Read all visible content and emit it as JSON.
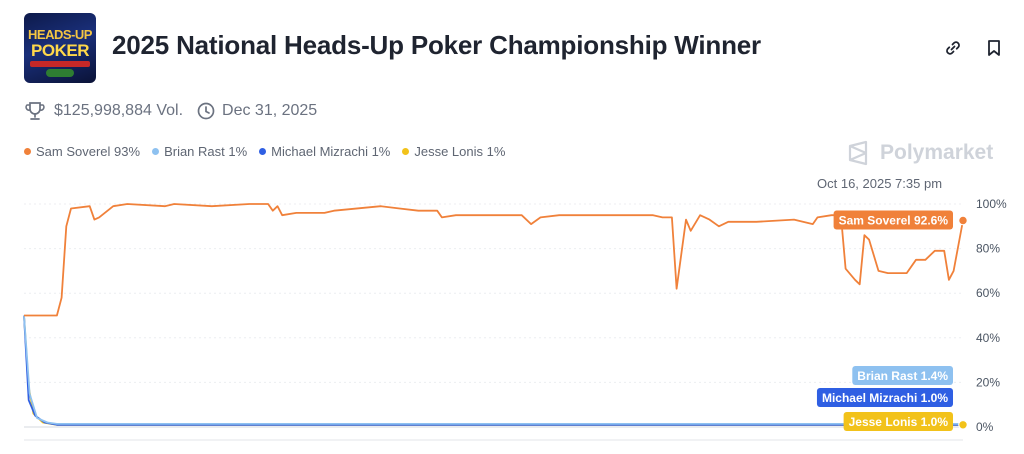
{
  "header": {
    "title": "2025 National Heads-Up Poker Championship Winner",
    "logo_line1": "HEADS-UP",
    "logo_line2": "POKER"
  },
  "meta": {
    "volume": "$125,998,884 Vol.",
    "end_date": "Dec 31, 2025"
  },
  "legend": [
    {
      "label": "Sam Soverel 93%",
      "color": "#f0813a"
    },
    {
      "label": "Brian Rast 1%",
      "color": "#8ec1f0"
    },
    {
      "label": "Michael Mizrachi 1%",
      "color": "#2f5fe3"
    },
    {
      "label": "Jesse Lonis 1%",
      "color": "#f2c21a"
    }
  ],
  "brand": "Polymarket",
  "timestamp": "Oct 16, 2025 7:35 pm",
  "colors": {
    "sam": "#f0813a",
    "brian": "#8ec1f0",
    "michael": "#2f5fe3",
    "jesse": "#f2c21a"
  },
  "chart_data": {
    "type": "line",
    "ylim": [
      0,
      100
    ],
    "xlim": [
      0,
      100
    ],
    "y_ticks": [
      "0%",
      "20%",
      "40%",
      "60%",
      "80%",
      "100%"
    ],
    "grid": true,
    "series": [
      {
        "name": "Sam Soverel",
        "color": "#f0813a",
        "end_label": "Sam Soverel 92.6%",
        "points": [
          [
            0,
            50
          ],
          [
            3.5,
            50
          ],
          [
            4.0,
            58
          ],
          [
            4.5,
            90
          ],
          [
            5.0,
            98
          ],
          [
            7.0,
            99
          ],
          [
            7.5,
            93
          ],
          [
            8.0,
            94
          ],
          [
            9.5,
            99
          ],
          [
            11,
            100
          ],
          [
            15,
            99
          ],
          [
            16,
            100
          ],
          [
            20,
            99
          ],
          [
            24,
            100
          ],
          [
            26,
            100
          ],
          [
            26.5,
            97
          ],
          [
            27,
            99
          ],
          [
            27.5,
            95
          ],
          [
            29,
            96
          ],
          [
            32,
            96
          ],
          [
            33,
            97
          ],
          [
            38,
            99
          ],
          [
            40,
            98
          ],
          [
            42,
            97
          ],
          [
            44,
            97
          ],
          [
            44.5,
            94
          ],
          [
            46,
            95
          ],
          [
            53,
            95
          ],
          [
            54,
            91
          ],
          [
            55,
            94
          ],
          [
            57,
            95
          ],
          [
            61,
            95
          ],
          [
            63,
            95
          ],
          [
            67,
            95
          ],
          [
            68,
            94
          ],
          [
            69,
            94
          ],
          [
            69.5,
            62
          ],
          [
            70.5,
            93
          ],
          [
            71,
            88
          ],
          [
            72,
            95
          ],
          [
            73,
            93
          ],
          [
            74,
            90
          ],
          [
            75,
            92
          ],
          [
            78,
            92
          ],
          [
            82,
            93
          ],
          [
            84,
            91
          ],
          [
            84.5,
            94
          ],
          [
            86,
            95
          ],
          [
            87,
            95
          ],
          [
            87.5,
            71
          ],
          [
            88.5,
            66
          ],
          [
            89,
            64
          ],
          [
            89.5,
            86
          ],
          [
            90,
            84
          ],
          [
            91,
            70
          ],
          [
            92,
            69
          ],
          [
            94,
            69
          ],
          [
            95,
            75
          ],
          [
            96,
            75
          ],
          [
            97,
            79
          ],
          [
            98,
            79
          ],
          [
            98.5,
            66
          ],
          [
            99,
            70
          ],
          [
            100,
            92.6
          ]
        ]
      },
      {
        "name": "Brian Rast",
        "color": "#8ec1f0",
        "end_label": "Brian Rast 1.4%",
        "points": [
          [
            0,
            50
          ],
          [
            0.6,
            15
          ],
          [
            1.4,
            4
          ],
          [
            2.5,
            2
          ],
          [
            3.5,
            1.4
          ],
          [
            100,
            1.4
          ]
        ]
      },
      {
        "name": "Michael Mizrachi",
        "color": "#2f5fe3",
        "end_label": "Michael Mizrachi 1.0%",
        "points": [
          [
            0,
            50
          ],
          [
            0.5,
            12
          ],
          [
            1.2,
            5
          ],
          [
            2.2,
            2
          ],
          [
            3.5,
            1.0
          ],
          [
            100,
            1.0
          ]
        ]
      },
      {
        "name": "Jesse Lonis",
        "color": "#f2c21a",
        "end_label": "Jesse Lonis 1.0%",
        "points": [
          [
            0,
            50
          ],
          [
            0.5,
            18
          ],
          [
            1.0,
            6
          ],
          [
            2.0,
            2
          ],
          [
            3.5,
            1.0
          ],
          [
            100,
            1.0
          ]
        ]
      }
    ]
  }
}
